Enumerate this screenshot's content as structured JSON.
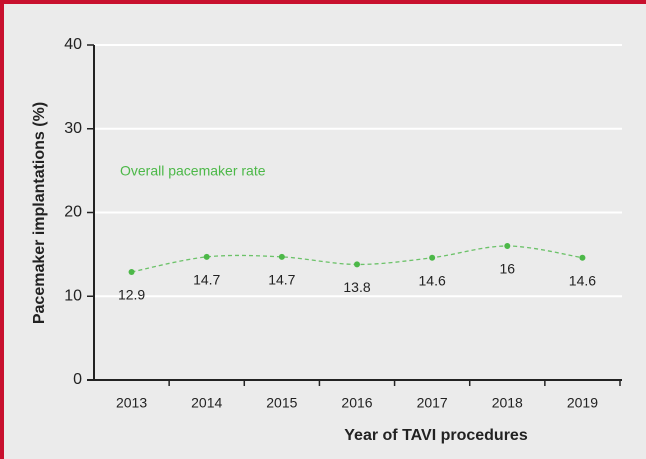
{
  "chart_data": {
    "type": "line",
    "annotation": "Overall pacemaker rate",
    "xlabel": "Year of TAVI procedures",
    "ylabel": "Pacemaker implantations (%)",
    "categories": [
      "2013",
      "2014",
      "2015",
      "2016",
      "2017",
      "2018",
      "2019"
    ],
    "values": [
      12.9,
      14.7,
      14.7,
      13.8,
      14.6,
      16,
      14.6
    ],
    "color": "#4cb848",
    "ylim": [
      0,
      40
    ],
    "yticks": [
      0,
      10,
      20,
      30,
      40
    ],
    "grid": true
  }
}
